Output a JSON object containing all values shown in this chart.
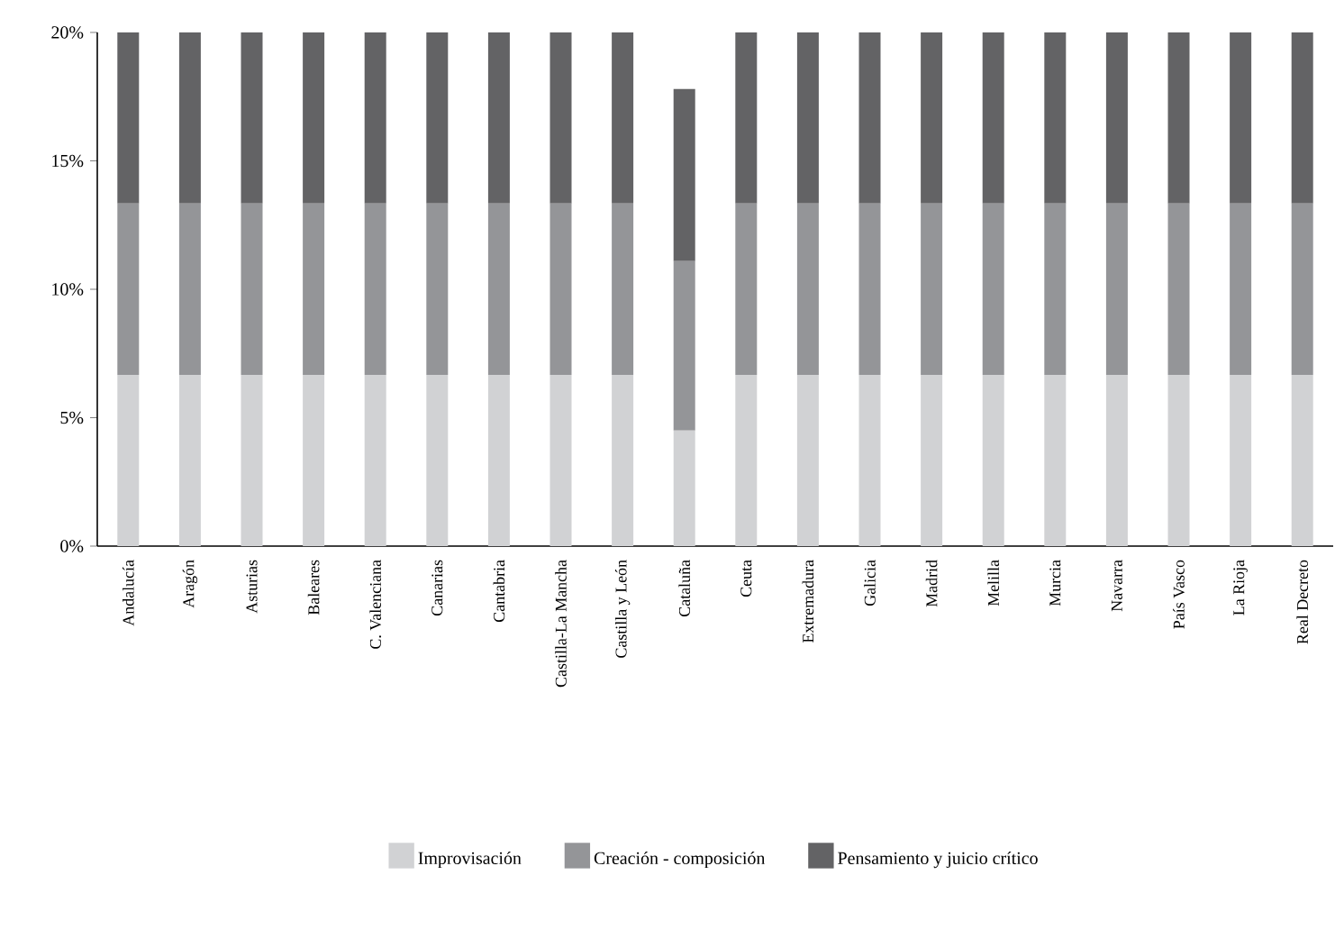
{
  "chart_data": {
    "type": "bar",
    "stacked": true,
    "categories": [
      "Andalucía",
      "Aragón",
      "Asturias",
      "Baleares",
      "C. Valenciana",
      "Canarias",
      "Cantabria",
      "Castilla-La Mancha",
      "Castilla y León",
      "Cataluña",
      "Ceuta",
      "Extremadura",
      "Galicia",
      "Madrid",
      "Melilla",
      "Murcia",
      "Navarra",
      "País Vasco",
      "La Rioja",
      "Real Decreto"
    ],
    "series": [
      {
        "name": "Improvisación",
        "color": "#d1d2d4",
        "values": [
          6.67,
          6.67,
          6.67,
          6.67,
          6.67,
          6.67,
          6.67,
          6.67,
          6.67,
          4.5,
          6.67,
          6.67,
          6.67,
          6.67,
          6.67,
          6.67,
          6.67,
          6.67,
          6.67,
          6.67
        ]
      },
      {
        "name": "Creación - composición",
        "color": "#949598",
        "values": [
          6.67,
          6.67,
          6.67,
          6.67,
          6.67,
          6.67,
          6.67,
          6.67,
          6.67,
          6.6,
          6.67,
          6.67,
          6.67,
          6.67,
          6.67,
          6.67,
          6.67,
          6.67,
          6.67,
          6.67
        ]
      },
      {
        "name": "Pensamiento y juicio crítico",
        "color": "#636365",
        "values": [
          6.66,
          6.66,
          6.66,
          6.66,
          6.66,
          6.66,
          6.66,
          6.66,
          6.66,
          6.7,
          6.66,
          6.66,
          6.66,
          6.66,
          6.66,
          6.66,
          6.66,
          6.66,
          6.66,
          6.66
        ]
      }
    ],
    "ylim": [
      0,
      20
    ],
    "yticks": [
      {
        "value": 0,
        "label": "0%"
      },
      {
        "value": 5,
        "label": "5%"
      },
      {
        "value": 10,
        "label": "10%"
      },
      {
        "value": 15,
        "label": "15%"
      },
      {
        "value": 20,
        "label": "20%"
      }
    ],
    "grid": false,
    "legend": "bottom"
  }
}
